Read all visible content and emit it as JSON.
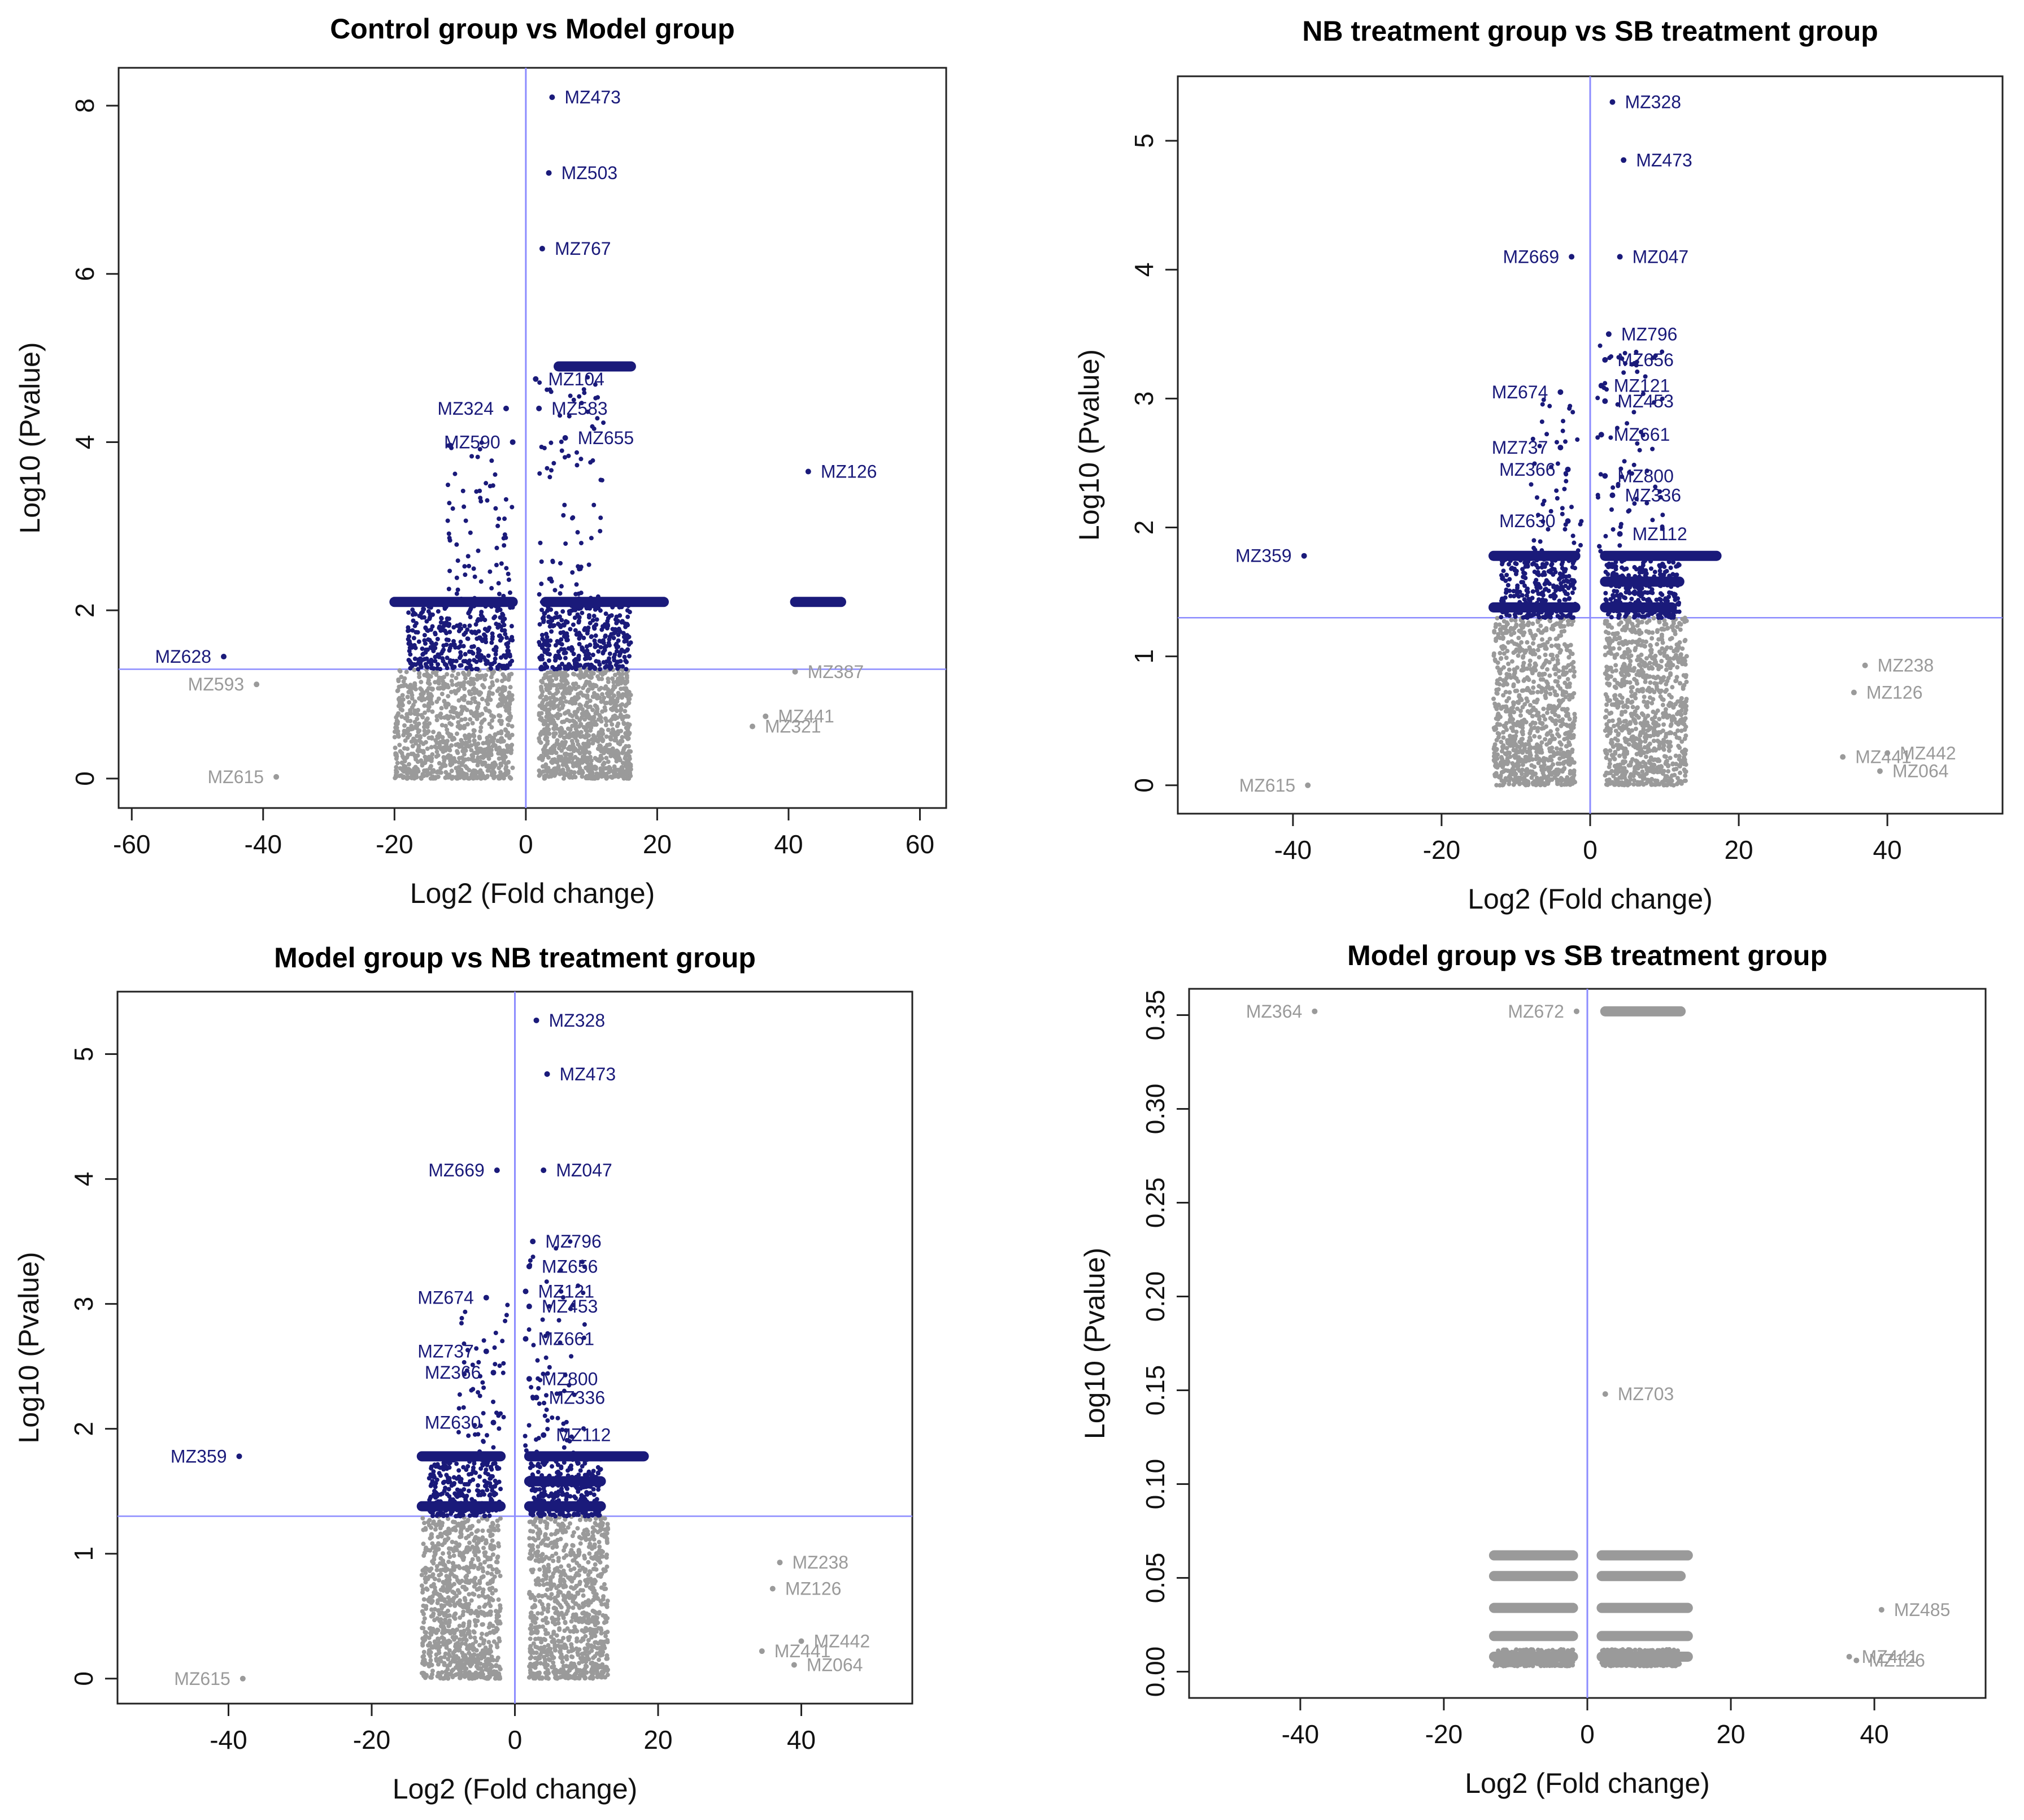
{
  "colors": {
    "sig": "#1a1a7a",
    "nonsig": "#9a9a9a",
    "refline": "#8c8cff",
    "axis": "#222222"
  },
  "chart_data": [
    {
      "type": "scatter",
      "title": "Control group vs Model group",
      "xlabel": "Log2 (Fold change)",
      "ylabel": "Log10 (Pvalue)",
      "xlim": [
        -62,
        64
      ],
      "ylim": [
        -0.35,
        8.45
      ],
      "xticks": [
        -60,
        -40,
        -20,
        0,
        20,
        40,
        60
      ],
      "xtick_labels": [
        "-60",
        "-40",
        "-20",
        "0",
        "20",
        "40",
        "60"
      ],
      "yticks": [
        0,
        2,
        4,
        6,
        8
      ],
      "ytick_labels": [
        "0",
        "2",
        "4",
        "6",
        "8"
      ],
      "ytick_rotate": true,
      "hline": 1.3,
      "vline": 0,
      "clusters": [
        {
          "x": [
            -20,
            -2
          ],
          "y": [
            0,
            1.3
          ],
          "n": 900,
          "sig": false
        },
        {
          "x": [
            2,
            16
          ],
          "y": [
            0,
            1.3
          ],
          "n": 900,
          "sig": false
        },
        {
          "x": [
            -18,
            -2
          ],
          "y": [
            1.3,
            2.1
          ],
          "n": 350,
          "sig": true
        },
        {
          "x": [
            2,
            16
          ],
          "y": [
            1.3,
            2.1
          ],
          "n": 350,
          "sig": true
        },
        {
          "x": [
            -12,
            -2
          ],
          "y": [
            2.1,
            4.0
          ],
          "n": 70,
          "sig": true
        },
        {
          "x": [
            2,
            12
          ],
          "y": [
            2.1,
            4.9
          ],
          "n": 80,
          "sig": true
        }
      ],
      "bands": [
        {
          "x": [
            -20,
            -2
          ],
          "y": 2.1,
          "sig": true
        },
        {
          "x": [
            3,
            21
          ],
          "y": 2.1,
          "sig": true
        },
        {
          "x": [
            5,
            16
          ],
          "y": 4.9,
          "sig": true
        },
        {
          "x": [
            41,
            48
          ],
          "y": 2.1,
          "sig": true
        }
      ],
      "points": [
        {
          "x": 4,
          "y": 8.1,
          "label": "MZ473",
          "pos": "right",
          "sig": true
        },
        {
          "x": 3.5,
          "y": 7.2,
          "label": "MZ503",
          "pos": "right",
          "sig": true
        },
        {
          "x": 2.5,
          "y": 6.3,
          "label": "MZ767",
          "pos": "right",
          "sig": true
        },
        {
          "x": 1.5,
          "y": 4.75,
          "label": "MZ104",
          "pos": "right",
          "sig": true
        },
        {
          "x": 2,
          "y": 4.4,
          "label": "MZ583",
          "pos": "right",
          "sig": true
        },
        {
          "x": -3,
          "y": 4.4,
          "label": "MZ324",
          "pos": "left",
          "sig": true
        },
        {
          "x": 6,
          "y": 4.05,
          "label": "MZ655",
          "pos": "right",
          "sig": true
        },
        {
          "x": -2,
          "y": 4.0,
          "label": "MZ590",
          "pos": "left",
          "sig": true
        },
        {
          "x": 43,
          "y": 3.65,
          "label": "MZ126",
          "pos": "right",
          "sig": true
        },
        {
          "x": -46,
          "y": 1.45,
          "label": "MZ628",
          "pos": "left",
          "sig": true
        },
        {
          "x": -41,
          "y": 1.12,
          "label": "MZ593",
          "pos": "left",
          "sig": false
        },
        {
          "x": -38,
          "y": 0.02,
          "label": "MZ615",
          "pos": "left",
          "sig": false
        },
        {
          "x": 41,
          "y": 1.27,
          "label": "MZ387",
          "pos": "right",
          "sig": false
        },
        {
          "x": 36.5,
          "y": 0.74,
          "label": "MZ441",
          "pos": "right",
          "sig": false
        },
        {
          "x": 34.5,
          "y": 0.62,
          "label": "MZ321",
          "pos": "right",
          "sig": false
        }
      ]
    },
    {
      "type": "scatter",
      "title": "NB treatment group vs SB treatment group",
      "xlabel": "Log2 (Fold change)",
      "ylabel": "Log10 (Pvalue)",
      "xlim": [
        -55.5,
        55.5
      ],
      "ylim": [
        -0.22,
        5.5
      ],
      "xticks": [
        -40,
        -20,
        0,
        20,
        40
      ],
      "xtick_labels": [
        "-40",
        "-20",
        "0",
        "20",
        "40"
      ],
      "yticks": [
        0,
        1,
        2,
        3,
        4,
        5
      ],
      "ytick_labels": [
        "0",
        "1",
        "2",
        "3",
        "4",
        "5"
      ],
      "ytick_rotate": true,
      "hline": 1.3,
      "vline": 0,
      "clusters": [
        {
          "x": [
            -13,
            -2
          ],
          "y": [
            0,
            1.3
          ],
          "n": 900,
          "sig": false
        },
        {
          "x": [
            2,
            13
          ],
          "y": [
            0,
            1.3
          ],
          "n": 900,
          "sig": false
        },
        {
          "x": [
            -12,
            -2
          ],
          "y": [
            1.3,
            1.8
          ],
          "n": 300,
          "sig": true
        },
        {
          "x": [
            2,
            12
          ],
          "y": [
            1.3,
            1.8
          ],
          "n": 300,
          "sig": true
        },
        {
          "x": [
            -8,
            -1
          ],
          "y": [
            1.8,
            3.0
          ],
          "n": 50,
          "sig": true
        },
        {
          "x": [
            1,
            10
          ],
          "y": [
            1.8,
            3.5
          ],
          "n": 70,
          "sig": true
        }
      ],
      "bands": [
        {
          "x": [
            -13,
            -2
          ],
          "y": 1.78,
          "sig": true
        },
        {
          "x": [
            2,
            17
          ],
          "y": 1.78,
          "sig": true
        },
        {
          "x": [
            2,
            12
          ],
          "y": 1.58,
          "sig": true
        },
        {
          "x": [
            -13,
            -2
          ],
          "y": 1.38,
          "sig": true
        },
        {
          "x": [
            2,
            11
          ],
          "y": 1.38,
          "sig": true
        }
      ],
      "points": [
        {
          "x": 3,
          "y": 5.3,
          "label": "MZ328",
          "pos": "right",
          "sig": true
        },
        {
          "x": 4.5,
          "y": 4.85,
          "label": "MZ473",
          "pos": "right",
          "sig": true
        },
        {
          "x": -2.5,
          "y": 4.1,
          "label": "MZ669",
          "pos": "left",
          "sig": true
        },
        {
          "x": 4,
          "y": 4.1,
          "label": "MZ047",
          "pos": "right",
          "sig": true
        },
        {
          "x": 2.5,
          "y": 3.5,
          "label": "MZ796",
          "pos": "right",
          "sig": true
        },
        {
          "x": 2,
          "y": 3.3,
          "label": "MZ656",
          "pos": "right",
          "sig": true
        },
        {
          "x": -4,
          "y": 3.05,
          "label": "MZ674",
          "pos": "left",
          "sig": true
        },
        {
          "x": 1.5,
          "y": 3.1,
          "label": "MZ121",
          "pos": "right",
          "sig": true
        },
        {
          "x": 2,
          "y": 2.98,
          "label": "MZ453",
          "pos": "right",
          "sig": true
        },
        {
          "x": 1.5,
          "y": 2.72,
          "label": "MZ661",
          "pos": "right",
          "sig": true
        },
        {
          "x": -4,
          "y": 2.62,
          "label": "MZ737",
          "pos": "left",
          "sig": true
        },
        {
          "x": -3,
          "y": 2.45,
          "label": "MZ366",
          "pos": "left",
          "sig": true
        },
        {
          "x": 2,
          "y": 2.4,
          "label": "MZ800",
          "pos": "right",
          "sig": true
        },
        {
          "x": 3,
          "y": 2.25,
          "label": "MZ336",
          "pos": "right",
          "sig": true
        },
        {
          "x": -3,
          "y": 2.05,
          "label": "MZ630",
          "pos": "left",
          "sig": true
        },
        {
          "x": 4,
          "y": 1.95,
          "label": "MZ112",
          "pos": "right",
          "sig": true
        },
        {
          "x": -38.5,
          "y": 1.78,
          "label": "MZ359",
          "pos": "left",
          "sig": true
        },
        {
          "x": -38,
          "y": 0.0,
          "label": "MZ615",
          "pos": "left",
          "sig": false
        },
        {
          "x": 37,
          "y": 0.93,
          "label": "MZ238",
          "pos": "right",
          "sig": false
        },
        {
          "x": 35.5,
          "y": 0.72,
          "label": "MZ126",
          "pos": "right",
          "sig": false
        },
        {
          "x": 40,
          "y": 0.25,
          "label": "MZ442",
          "pos": "right",
          "sig": false
        },
        {
          "x": 34,
          "y": 0.22,
          "label": "MZ441",
          "pos": "right",
          "sig": false
        },
        {
          "x": 39,
          "y": 0.11,
          "label": "MZ064",
          "pos": "right",
          "sig": false
        }
      ]
    },
    {
      "type": "scatter",
      "title": "Model group vs NB treatment group",
      "xlabel": "Log2 (Fold change)",
      "ylabel": "Log10 (Pvalue)",
      "xlim": [
        -55.5,
        55.5
      ],
      "ylim": [
        -0.2,
        5.5
      ],
      "xticks": [
        -40,
        -20,
        0,
        20,
        40
      ],
      "xtick_labels": [
        "-40",
        "-20",
        "0",
        "20",
        "40"
      ],
      "yticks": [
        0,
        1,
        2,
        3,
        4,
        5
      ],
      "ytick_labels": [
        "0",
        "1",
        "2",
        "3",
        "4",
        "5"
      ],
      "ytick_rotate": true,
      "hline": 1.3,
      "vline": 0,
      "clusters": [
        {
          "x": [
            -13,
            -2
          ],
          "y": [
            0,
            1.3
          ],
          "n": 900,
          "sig": false
        },
        {
          "x": [
            2,
            13
          ],
          "y": [
            0,
            1.3
          ],
          "n": 900,
          "sig": false
        },
        {
          "x": [
            -12,
            -2
          ],
          "y": [
            1.3,
            1.8
          ],
          "n": 300,
          "sig": true
        },
        {
          "x": [
            2,
            12
          ],
          "y": [
            1.3,
            1.8
          ],
          "n": 300,
          "sig": true
        },
        {
          "x": [
            -8,
            -1
          ],
          "y": [
            1.8,
            3.0
          ],
          "n": 50,
          "sig": true
        },
        {
          "x": [
            1,
            10
          ],
          "y": [
            1.8,
            3.5
          ],
          "n": 70,
          "sig": true
        }
      ],
      "bands": [
        {
          "x": [
            -13,
            -2
          ],
          "y": 1.78,
          "sig": true
        },
        {
          "x": [
            2,
            18
          ],
          "y": 1.78,
          "sig": true
        },
        {
          "x": [
            2,
            12
          ],
          "y": 1.58,
          "sig": true
        },
        {
          "x": [
            -13,
            -2
          ],
          "y": 1.38,
          "sig": true
        },
        {
          "x": [
            2,
            12
          ],
          "y": 1.38,
          "sig": true
        }
      ],
      "points": [
        {
          "x": 3,
          "y": 5.27,
          "label": "MZ328",
          "pos": "right",
          "sig": true
        },
        {
          "x": 4.5,
          "y": 4.84,
          "label": "MZ473",
          "pos": "right",
          "sig": true
        },
        {
          "x": -2.5,
          "y": 4.07,
          "label": "MZ669",
          "pos": "left",
          "sig": true
        },
        {
          "x": 4,
          "y": 4.07,
          "label": "MZ047",
          "pos": "right",
          "sig": true
        },
        {
          "x": 2.5,
          "y": 3.5,
          "label": "MZ796",
          "pos": "right",
          "sig": true
        },
        {
          "x": 2,
          "y": 3.3,
          "label": "MZ656",
          "pos": "right",
          "sig": true
        },
        {
          "x": -4,
          "y": 3.05,
          "label": "MZ674",
          "pos": "left",
          "sig": true
        },
        {
          "x": 1.5,
          "y": 3.1,
          "label": "MZ121",
          "pos": "right",
          "sig": true
        },
        {
          "x": 2,
          "y": 2.98,
          "label": "MZ453",
          "pos": "right",
          "sig": true
        },
        {
          "x": 1.5,
          "y": 2.72,
          "label": "MZ661",
          "pos": "right",
          "sig": true
        },
        {
          "x": -4,
          "y": 2.62,
          "label": "MZ737",
          "pos": "left",
          "sig": true
        },
        {
          "x": -3,
          "y": 2.45,
          "label": "MZ366",
          "pos": "left",
          "sig": true
        },
        {
          "x": 2,
          "y": 2.4,
          "label": "MZ800",
          "pos": "right",
          "sig": true
        },
        {
          "x": 3,
          "y": 2.25,
          "label": "MZ336",
          "pos": "right",
          "sig": true
        },
        {
          "x": -3,
          "y": 2.05,
          "label": "MZ630",
          "pos": "left",
          "sig": true
        },
        {
          "x": 4,
          "y": 1.95,
          "label": "MZ112",
          "pos": "right",
          "sig": true
        },
        {
          "x": -38.5,
          "y": 1.78,
          "label": "MZ359",
          "pos": "left",
          "sig": true
        },
        {
          "x": -38,
          "y": 0.0,
          "label": "MZ615",
          "pos": "left",
          "sig": false
        },
        {
          "x": 37,
          "y": 0.93,
          "label": "MZ238",
          "pos": "right",
          "sig": false
        },
        {
          "x": 36,
          "y": 0.72,
          "label": "MZ126",
          "pos": "right",
          "sig": false
        },
        {
          "x": 40,
          "y": 0.3,
          "label": "MZ442",
          "pos": "right",
          "sig": false
        },
        {
          "x": 34.5,
          "y": 0.22,
          "label": "MZ441",
          "pos": "right",
          "sig": false
        },
        {
          "x": 39,
          "y": 0.11,
          "label": "MZ064",
          "pos": "right",
          "sig": false
        }
      ]
    },
    {
      "type": "scatter",
      "title": "Model group vs SB treatment group",
      "xlabel": "Log2 (Fold change)",
      "ylabel": "Log10 (Pvalue)",
      "xlim": [
        -55.5,
        55.5
      ],
      "ylim": [
        -0.014,
        0.364
      ],
      "xticks": [
        -40,
        -20,
        0,
        20,
        40
      ],
      "xtick_labels": [
        "-40",
        "-20",
        "0",
        "20",
        "40"
      ],
      "yticks": [
        0,
        0.05,
        0.1,
        0.15,
        0.2,
        0.25,
        0.3,
        0.35
      ],
      "ytick_labels": [
        "0.00",
        "0.05",
        "0.10",
        "0.15",
        "0.20",
        "0.25",
        "0.30",
        "0.35"
      ],
      "ytick_rotate": true,
      "hline": null,
      "vline": 0,
      "clusters": [
        {
          "x": [
            -13,
            -2
          ],
          "y": [
            0.003,
            0.012
          ],
          "n": 400,
          "sig": false
        },
        {
          "x": [
            2,
            13
          ],
          "y": [
            0.003,
            0.012
          ],
          "n": 400,
          "sig": false
        }
      ],
      "bands": [
        {
          "x": [
            2.5,
            13
          ],
          "y": 0.352,
          "sig": false
        },
        {
          "x": [
            -13,
            -2
          ],
          "y": 0.062,
          "sig": false
        },
        {
          "x": [
            2,
            14
          ],
          "y": 0.062,
          "sig": false
        },
        {
          "x": [
            -13,
            -2
          ],
          "y": 0.051,
          "sig": false
        },
        {
          "x": [
            2,
            13
          ],
          "y": 0.051,
          "sig": false
        },
        {
          "x": [
            -13,
            -2
          ],
          "y": 0.034,
          "sig": false
        },
        {
          "x": [
            2,
            14
          ],
          "y": 0.034,
          "sig": false
        },
        {
          "x": [
            -13,
            -2
          ],
          "y": 0.019,
          "sig": false
        },
        {
          "x": [
            2,
            14
          ],
          "y": 0.019,
          "sig": false
        },
        {
          "x": [
            -13,
            -2
          ],
          "y": 0.008,
          "sig": false
        },
        {
          "x": [
            2,
            14
          ],
          "y": 0.008,
          "sig": false
        }
      ],
      "points": [
        {
          "x": -38,
          "y": 0.352,
          "label": "MZ364",
          "pos": "left",
          "sig": false
        },
        {
          "x": -1.5,
          "y": 0.352,
          "label": "MZ672",
          "pos": "left",
          "sig": false
        },
        {
          "x": 2.5,
          "y": 0.148,
          "label": "MZ703",
          "pos": "right",
          "sig": false
        },
        {
          "x": 41,
          "y": 0.033,
          "label": "MZ485",
          "pos": "right",
          "sig": false
        },
        {
          "x": 36.5,
          "y": 0.008,
          "label": "MZ441",
          "pos": "right",
          "sig": false
        },
        {
          "x": 37.5,
          "y": 0.006,
          "label": "MZ126",
          "pos": "right",
          "sig": false
        }
      ]
    }
  ]
}
